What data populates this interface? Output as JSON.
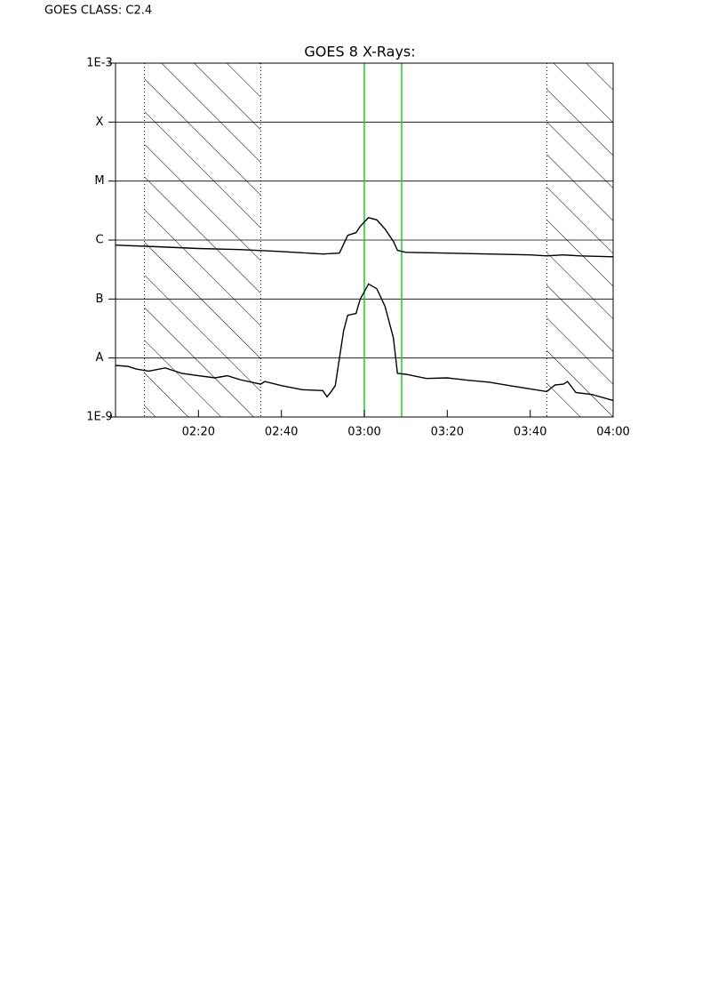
{
  "header": {
    "text": "GOES CLASS: C2.4"
  },
  "chart_data": {
    "type": "line",
    "title": "GOES 8 X-Rays:",
    "yscale": "log",
    "ylim": [
      1e-09,
      0.001
    ],
    "yticks": [
      {
        "value": 1e-09,
        "label": "1E-9"
      },
      {
        "value": 1e-08,
        "label": "A"
      },
      {
        "value": 1e-07,
        "label": "B"
      },
      {
        "value": 1e-06,
        "label": "C"
      },
      {
        "value": 1e-05,
        "label": "M"
      },
      {
        "value": 0.0001,
        "label": "X"
      },
      {
        "value": 0.001,
        "label": "1E-3"
      }
    ],
    "grid": true,
    "xlim": [
      "02:00",
      "04:00"
    ],
    "xticks": [
      "02:20",
      "02:40",
      "03:00",
      "03:20",
      "03:40",
      "04:00"
    ],
    "shaded_intervals": [
      [
        "02:07",
        "02:35"
      ],
      [
        "03:44",
        "04:00"
      ]
    ],
    "markers": {
      "color": "#22cc22",
      "x": [
        "03:00",
        "03:09"
      ]
    },
    "series": [
      {
        "color": "#000000",
        "x": [
          "02:00",
          "02:10",
          "02:20",
          "02:30",
          "02:40",
          "02:50",
          "02:54",
          "02:56",
          "02:58",
          "02:59",
          "03:01",
          "03:03",
          "03:05",
          "03:07",
          "03:08",
          "03:10",
          "03:20",
          "03:30",
          "03:40",
          "03:44",
          "03:48",
          "03:52",
          "04:00"
        ],
        "values": [
          8.2e-07,
          7.7e-07,
          7.2e-07,
          6.9e-07,
          6.4e-07,
          5.8e-07,
          6e-07,
          1.2e-06,
          1.34e-06,
          1.7e-06,
          2.4e-06,
          2.2e-06,
          1.54e-06,
          9.5e-07,
          6.7e-07,
          6.2e-07,
          6e-07,
          5.8e-07,
          5.6e-07,
          5.4e-07,
          5.6e-07,
          5.4e-07,
          5.2e-07
        ]
      },
      {
        "color": "#000000",
        "x": [
          "02:00",
          "02:03",
          "02:05",
          "02:08",
          "02:12",
          "02:16",
          "02:20",
          "02:24",
          "02:27",
          "02:30",
          "02:35",
          "02:36",
          "02:40",
          "02:45",
          "02:50",
          "02:51",
          "02:52",
          "02:53",
          "02:55",
          "02:56",
          "02:58",
          "02:59",
          "03:01",
          "03:03",
          "03:05",
          "03:07",
          "03:08",
          "03:10",
          "03:15",
          "03:20",
          "03:25",
          "03:30",
          "03:35",
          "03:40",
          "03:44",
          "03:46",
          "03:48",
          "03:49",
          "03:51",
          "03:55",
          "04:00"
        ],
        "values": [
          7.5e-09,
          7.2e-09,
          6.5e-09,
          6e-09,
          6.8e-09,
          5.5e-09,
          5e-09,
          4.6e-09,
          5e-09,
          4.3e-09,
          3.6e-09,
          4e-09,
          3.4e-09,
          2.9e-09,
          2.8e-09,
          2.2e-09,
          2.7e-09,
          3.4e-09,
          2.9e-08,
          5.3e-08,
          5.7e-08,
          9.9e-08,
          1.8e-07,
          1.5e-07,
          7.5e-08,
          2.2e-08,
          5.5e-09,
          5.3e-09,
          4.5e-09,
          4.6e-09,
          4.2e-09,
          3.9e-09,
          3.4e-09,
          3e-09,
          2.7e-09,
          3.5e-09,
          3.6e-09,
          4e-09,
          2.6e-09,
          2.4e-09,
          1.9e-09
        ]
      }
    ]
  }
}
